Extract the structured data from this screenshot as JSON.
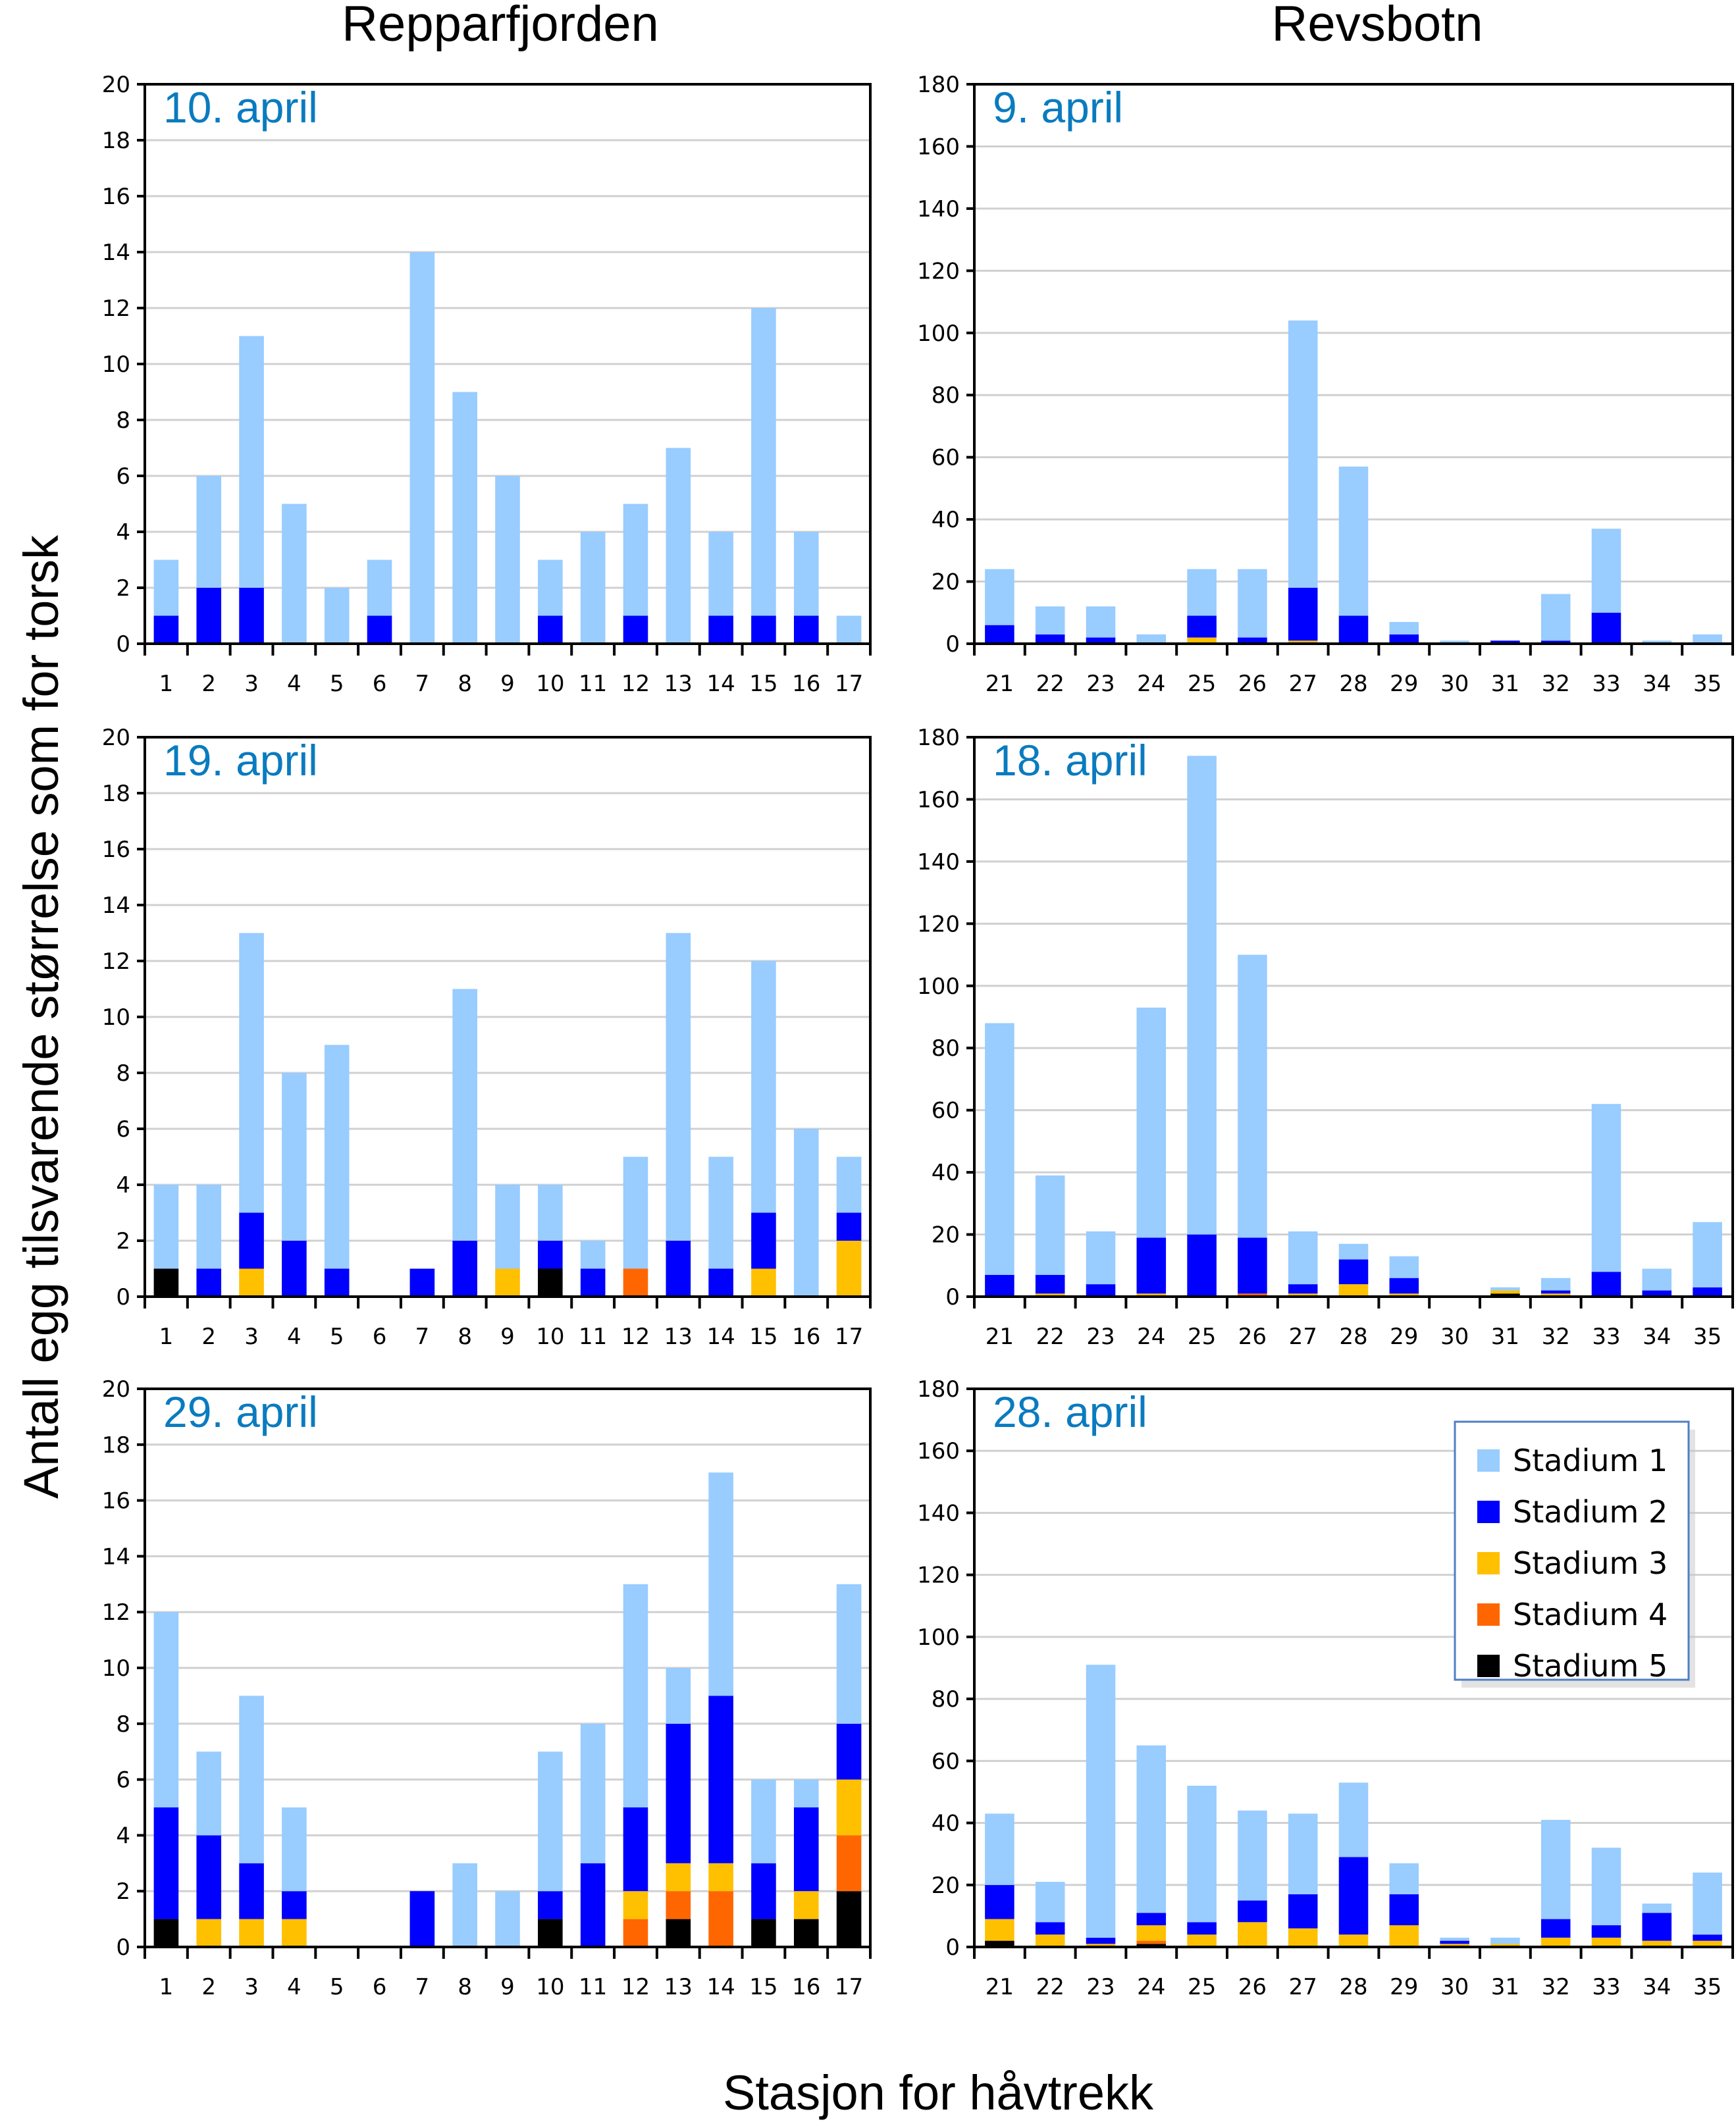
{
  "figure": {
    "column_titles": [
      "Repparfjorden",
      "Revsbotn"
    ],
    "ylabel": "Antall egg tilsvarende størrelse som for torsk",
    "xlabel": "Stasjon for håvtrekk"
  },
  "stages": [
    {
      "name": "Stadium 1",
      "color": "#99ccff"
    },
    {
      "name": "Stadium 2",
      "color": "#0000ff"
    },
    {
      "name": "Stadium 3",
      "color": "#ffc000"
    },
    {
      "name": "Stadium 4",
      "color": "#ff6600"
    },
    {
      "name": "Stadium 5",
      "color": "#000000"
    }
  ],
  "chart_data": [
    {
      "type": "bar",
      "stacked": true,
      "location": "Repparfjorden",
      "title": "10. april",
      "categories": [
        "1",
        "2",
        "3",
        "4",
        "5",
        "6",
        "7",
        "8",
        "9",
        "10",
        "11",
        "12",
        "13",
        "14",
        "15",
        "16",
        "17"
      ],
      "ylim": [
        0,
        20
      ],
      "ytick_step": 2,
      "grid": true,
      "series": [
        {
          "name": "Stadium 1",
          "values": [
            2,
            4,
            9,
            5,
            2,
            2,
            14,
            9,
            6,
            2,
            4,
            4,
            7,
            3,
            11,
            3,
            1
          ]
        },
        {
          "name": "Stadium 2",
          "values": [
            1,
            2,
            2,
            0,
            0,
            1,
            0,
            0,
            0,
            1,
            0,
            1,
            0,
            1,
            1,
            1,
            0
          ]
        },
        {
          "name": "Stadium 3",
          "values": [
            0,
            0,
            0,
            0,
            0,
            0,
            0,
            0,
            0,
            0,
            0,
            0,
            0,
            0,
            0,
            0,
            0
          ]
        },
        {
          "name": "Stadium 4",
          "values": [
            0,
            0,
            0,
            0,
            0,
            0,
            0,
            0,
            0,
            0,
            0,
            0,
            0,
            0,
            0,
            0,
            0
          ]
        },
        {
          "name": "Stadium 5",
          "values": [
            0,
            0,
            0,
            0,
            0,
            0,
            0,
            0,
            0,
            0,
            0,
            0,
            0,
            0,
            0,
            0,
            0
          ]
        }
      ]
    },
    {
      "type": "bar",
      "stacked": true,
      "location": "Revsbotn",
      "title": "9. april",
      "categories": [
        "21",
        "22",
        "23",
        "24",
        "25",
        "26",
        "27",
        "28",
        "29",
        "30",
        "31",
        "32",
        "33",
        "34",
        "35"
      ],
      "ylim": [
        0,
        180
      ],
      "ytick_step": 20,
      "grid": true,
      "series": [
        {
          "name": "Stadium 1",
          "values": [
            18,
            9,
            10,
            3,
            15,
            22,
            86,
            48,
            4,
            1,
            0,
            15,
            27,
            1,
            3
          ]
        },
        {
          "name": "Stadium 2",
          "values": [
            6,
            3,
            2,
            0,
            7,
            2,
            17,
            9,
            3,
            0,
            1,
            1,
            10,
            0,
            0
          ]
        },
        {
          "name": "Stadium 3",
          "values": [
            0,
            0,
            0,
            0,
            2,
            0,
            1,
            0,
            0,
            0,
            0,
            0,
            0,
            0,
            0
          ]
        },
        {
          "name": "Stadium 4",
          "values": [
            0,
            0,
            0,
            0,
            0,
            0,
            0,
            0,
            0,
            0,
            0,
            0,
            0,
            0,
            0
          ]
        },
        {
          "name": "Stadium 5",
          "values": [
            0,
            0,
            0,
            0,
            0,
            0,
            0,
            0,
            0,
            0,
            0,
            0,
            0,
            0,
            0
          ]
        }
      ]
    },
    {
      "type": "bar",
      "stacked": true,
      "location": "Repparfjorden",
      "title": "19. april",
      "categories": [
        "1",
        "2",
        "3",
        "4",
        "5",
        "6",
        "7",
        "8",
        "9",
        "10",
        "11",
        "12",
        "13",
        "14",
        "15",
        "16",
        "17"
      ],
      "ylim": [
        0,
        20
      ],
      "ytick_step": 2,
      "grid": true,
      "series": [
        {
          "name": "Stadium 1",
          "values": [
            3,
            3,
            10,
            6,
            8,
            0,
            0,
            9,
            3,
            2,
            1,
            4,
            11,
            4,
            9,
            6,
            2
          ]
        },
        {
          "name": "Stadium 2",
          "values": [
            0,
            1,
            2,
            2,
            1,
            0,
            1,
            2,
            0,
            1,
            1,
            0,
            2,
            1,
            2,
            0,
            1
          ]
        },
        {
          "name": "Stadium 3",
          "values": [
            0,
            0,
            1,
            0,
            0,
            0,
            0,
            0,
            1,
            0,
            0,
            0,
            0,
            0,
            1,
            0,
            2
          ]
        },
        {
          "name": "Stadium 4",
          "values": [
            0,
            0,
            0,
            0,
            0,
            0,
            0,
            0,
            0,
            0,
            0,
            1,
            0,
            0,
            0,
            0,
            0
          ]
        },
        {
          "name": "Stadium 5",
          "values": [
            1,
            0,
            0,
            0,
            0,
            0,
            0,
            0,
            0,
            1,
            0,
            0,
            0,
            0,
            0,
            0,
            0
          ]
        }
      ]
    },
    {
      "type": "bar",
      "stacked": true,
      "location": "Revsbotn",
      "title": "18. april",
      "categories": [
        "21",
        "22",
        "23",
        "24",
        "25",
        "26",
        "27",
        "28",
        "29",
        "30",
        "31",
        "32",
        "33",
        "34",
        "35"
      ],
      "ylim": [
        0,
        180
      ],
      "ytick_step": 20,
      "grid": true,
      "series": [
        {
          "name": "Stadium 1",
          "values": [
            81,
            32,
            17,
            74,
            154,
            91,
            17,
            5,
            7,
            0,
            1,
            4,
            54,
            7,
            21
          ]
        },
        {
          "name": "Stadium 2",
          "values": [
            7,
            6,
            4,
            18,
            20,
            18,
            3,
            8,
            5,
            0,
            0,
            1,
            8,
            2,
            3
          ]
        },
        {
          "name": "Stadium 3",
          "values": [
            0,
            1,
            0,
            1,
            0,
            0,
            1,
            4,
            1,
            0,
            1,
            1,
            0,
            0,
            0
          ]
        },
        {
          "name": "Stadium 4",
          "values": [
            0,
            0,
            0,
            0,
            0,
            1,
            0,
            0,
            0,
            0,
            0,
            0,
            0,
            0,
            0
          ]
        },
        {
          "name": "Stadium 5",
          "values": [
            0,
            0,
            0,
            0,
            0,
            0,
            0,
            0,
            0,
            0,
            1,
            0,
            0,
            0,
            0
          ]
        }
      ]
    },
    {
      "type": "bar",
      "stacked": true,
      "location": "Repparfjorden",
      "title": "29. april",
      "categories": [
        "1",
        "2",
        "3",
        "4",
        "5",
        "6",
        "7",
        "8",
        "9",
        "10",
        "11",
        "12",
        "13",
        "14",
        "15",
        "16",
        "17"
      ],
      "ylim": [
        0,
        20
      ],
      "ytick_step": 2,
      "grid": true,
      "series": [
        {
          "name": "Stadium 1",
          "values": [
            7,
            3,
            6,
            3,
            0,
            0,
            0,
            3,
            2,
            5,
            5,
            8,
            2,
            8,
            3,
            1,
            5
          ]
        },
        {
          "name": "Stadium 2",
          "values": [
            4,
            3,
            2,
            1,
            0,
            0,
            2,
            0,
            0,
            1,
            3,
            3,
            5,
            6,
            2,
            3,
            2
          ]
        },
        {
          "name": "Stadium 3",
          "values": [
            0,
            1,
            1,
            1,
            0,
            0,
            0,
            0,
            0,
            0,
            0,
            1,
            1,
            1,
            0,
            1,
            2
          ]
        },
        {
          "name": "Stadium 4",
          "values": [
            0,
            0,
            0,
            0,
            0,
            0,
            0,
            0,
            0,
            0,
            0,
            1,
            1,
            2,
            0,
            0,
            2
          ]
        },
        {
          "name": "Stadium 5",
          "values": [
            1,
            0,
            0,
            0,
            0,
            0,
            0,
            0,
            0,
            1,
            0,
            0,
            1,
            0,
            1,
            1,
            2
          ]
        }
      ]
    },
    {
      "type": "bar",
      "stacked": true,
      "location": "Revsbotn",
      "title": "28. april",
      "categories": [
        "21",
        "22",
        "23",
        "24",
        "25",
        "26",
        "27",
        "28",
        "29",
        "30",
        "31",
        "32",
        "33",
        "34",
        "35"
      ],
      "ylim": [
        0,
        180
      ],
      "ytick_step": 20,
      "grid": true,
      "legend": "top-right",
      "series": [
        {
          "name": "Stadium 1",
          "values": [
            23,
            13,
            88,
            54,
            44,
            29,
            26,
            24,
            10,
            1,
            2,
            32,
            25,
            3,
            20
          ]
        },
        {
          "name": "Stadium 2",
          "values": [
            11,
            4,
            2,
            4,
            4,
            7,
            11,
            25,
            10,
            1,
            0,
            6,
            4,
            9,
            2
          ]
        },
        {
          "name": "Stadium 3",
          "values": [
            7,
            4,
            1,
            5,
            4,
            8,
            6,
            4,
            7,
            1,
            1,
            3,
            3,
            2,
            2
          ]
        },
        {
          "name": "Stadium 4",
          "values": [
            0,
            0,
            0,
            1,
            0,
            0,
            0,
            0,
            0,
            0,
            0,
            0,
            0,
            0,
            0
          ]
        },
        {
          "name": "Stadium 5",
          "values": [
            2,
            0,
            0,
            1,
            0,
            0,
            0,
            0,
            0,
            0,
            0,
            0,
            0,
            0,
            0
          ]
        }
      ]
    }
  ]
}
